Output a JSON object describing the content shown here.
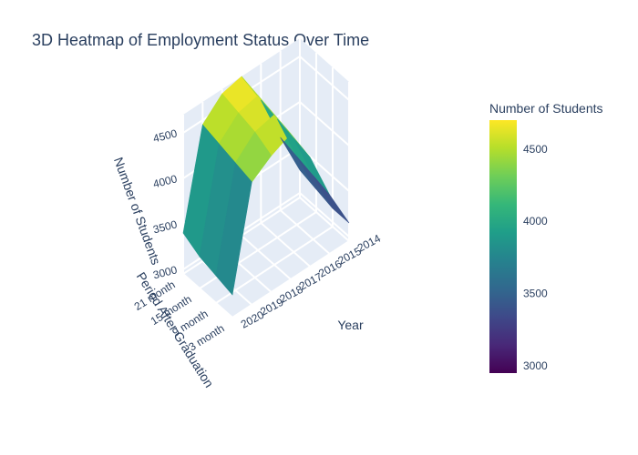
{
  "chart_data": {
    "type": "surface",
    "title": "3D Heatmap of Employment Status Over Time",
    "xlabel": "Year",
    "ylabel": "Period After Graduation",
    "zlabel": "Number of Students",
    "x": [
      "2014",
      "2015",
      "2016",
      "2017",
      "2018",
      "2019",
      "2020"
    ],
    "y": [
      "3 month",
      "9 month",
      "15 month",
      "21 month"
    ],
    "z_ticks": [
      "3000",
      "3500",
      "4000",
      "4500"
    ],
    "zlim": [
      2950,
      4700
    ],
    "z": [
      [
        3150,
        3600,
        4150,
        4550,
        4450,
        4300,
        3200
      ],
      [
        3150,
        3650,
        4200,
        4600,
        4550,
        4350,
        3250
      ],
      [
        3200,
        3700,
        4250,
        4650,
        4600,
        4400,
        3300
      ],
      [
        3250,
        3750,
        4300,
        4700,
        4650,
        4450,
        3400
      ]
    ],
    "colorbar": {
      "title": "Number of Students",
      "ticks": [
        "3000",
        "3500",
        "4000",
        "4500"
      ],
      "colorscale": "Viridis",
      "colors": [
        "#440154",
        "#482878",
        "#3e4989",
        "#31688e",
        "#26828e",
        "#1f9e89",
        "#35b779",
        "#6ece58",
        "#b5de2b",
        "#fde725"
      ]
    },
    "scene_bg": "#e5ecf6",
    "grid": true
  }
}
